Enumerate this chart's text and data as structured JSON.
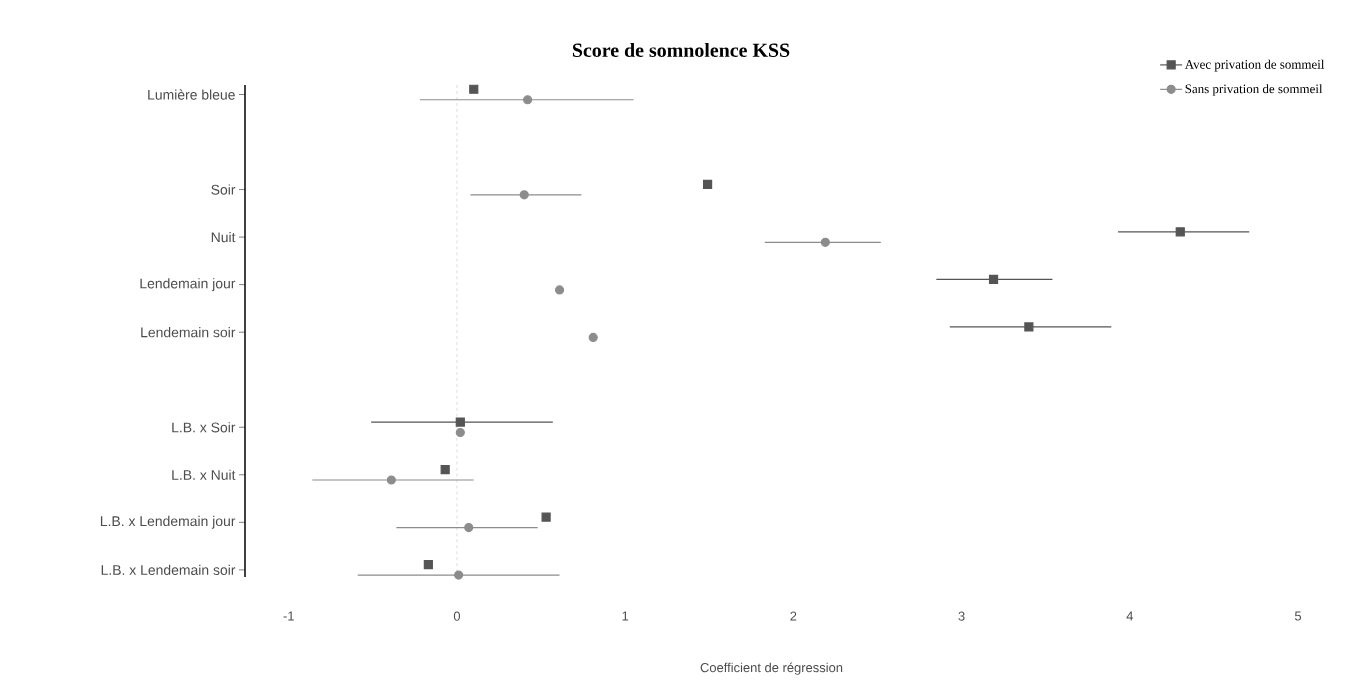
{
  "chart_data": {
    "type": "scatter",
    "orientation": "horizontal",
    "title": "Score de somnolence KSS",
    "xlabel": "Coefficient de régression",
    "categories": [
      "Lumière bleue",
      null,
      "Soir",
      "Nuit",
      "Lendemain jour",
      "Lendemain soir",
      null,
      "L.B. x Soir",
      "L.B. x Nuit",
      "L.B. x Lendemain jour",
      "L.B. x Lendemain soir"
    ],
    "series": [
      {
        "name": "Avec privation de sommeil",
        "color": "#555555",
        "marker": "square",
        "values": [
          0.1,
          null,
          1.49,
          4.3,
          3.19,
          3.4,
          null,
          0.02,
          -0.07,
          0.53,
          -0.17
        ],
        "errors": [
          null,
          null,
          null,
          [
            3.93,
            4.71
          ],
          [
            2.85,
            3.54
          ],
          [
            2.93,
            3.89
          ],
          null,
          [
            -0.51,
            0.57
          ],
          null,
          null,
          null
        ]
      },
      {
        "name": "Sans privation de sommeil",
        "color": "#8c8c8c",
        "marker": "circle",
        "values": [
          0.42,
          null,
          0.4,
          2.19,
          0.61,
          0.81,
          null,
          0.02,
          -0.39,
          0.07,
          0.01
        ],
        "errors": [
          [
            -0.22,
            1.05
          ],
          null,
          [
            0.08,
            0.74
          ],
          [
            1.83,
            2.52
          ],
          null,
          null,
          null,
          null,
          [
            -0.86,
            0.1
          ],
          [
            -0.36,
            0.48
          ],
          [
            -0.59,
            0.61
          ]
        ]
      }
    ],
    "xlim": [
      -1.26,
      5
    ],
    "xticks": [
      -1,
      0,
      1,
      2,
      3,
      4,
      5
    ],
    "ref_lines": [
      {
        "axis": "x",
        "value": 0,
        "line_style": "dashed",
        "color": "#aaaaaa"
      }
    ],
    "legend": "top right"
  }
}
